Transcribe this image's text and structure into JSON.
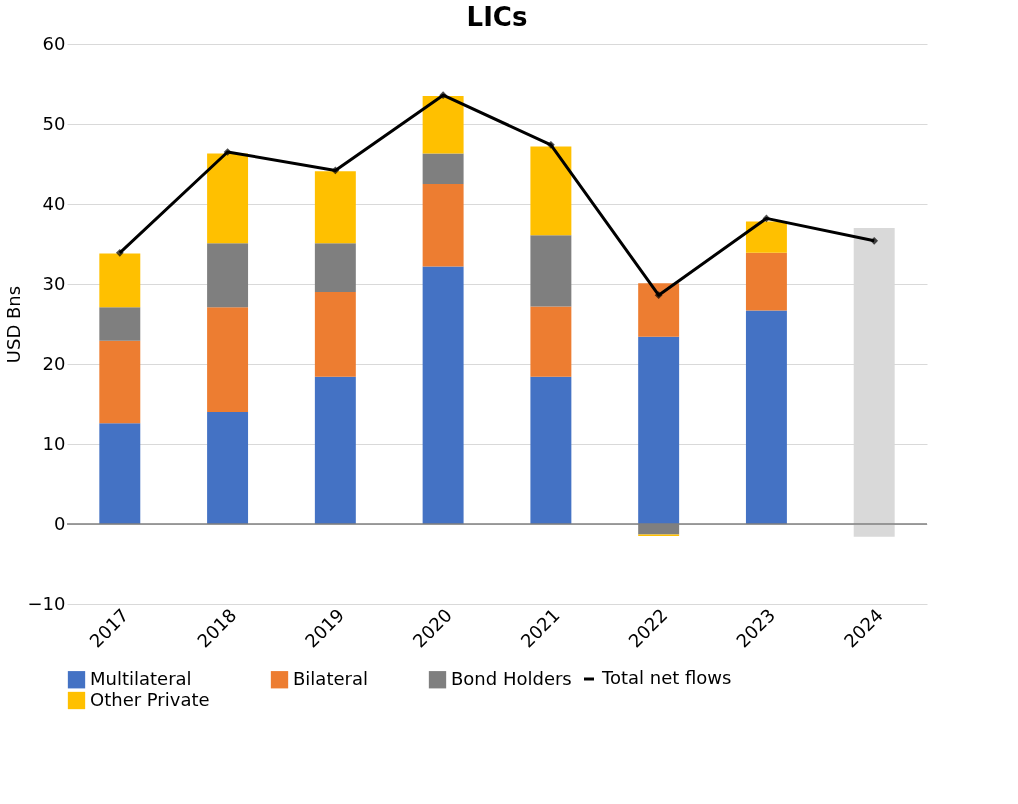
{
  "chart_data": {
    "type": "bar",
    "title": "LICs",
    "ylabel": "USD Bns",
    "stacked": true,
    "categories": [
      "2017",
      "2018",
      "2019",
      "2020",
      "2021",
      "2022",
      "2023",
      "2024"
    ],
    "series": [
      {
        "name": "Multilateral",
        "color": "#4472c4",
        "values": [
          12.6,
          14.0,
          18.4,
          32.2,
          18.4,
          23.4,
          26.7,
          null
        ]
      },
      {
        "name": "Bilateral",
        "color": "#ed7d31",
        "values": [
          10.3,
          13.1,
          10.6,
          10.3,
          8.8,
          6.7,
          7.2,
          null
        ]
      },
      {
        "name": "Bond Holders",
        "color": "#7f7f7f",
        "values": [
          4.2,
          8.0,
          6.1,
          3.8,
          8.9,
          -1.3,
          0,
          null
        ]
      },
      {
        "name": "Other Private",
        "color": "#ffc000",
        "values": [
          6.7,
          11.2,
          9.0,
          7.2,
          11.1,
          -0.2,
          3.9,
          null
        ]
      },
      {
        "color": "#d9d9d9",
        "values": [
          null,
          null,
          null,
          null,
          null,
          null,
          null,
          37.0
        ]
      },
      {
        "color": "#d9d9d9",
        "values": [
          null,
          null,
          null,
          null,
          null,
          null,
          null,
          -1.6
        ]
      },
      {
        "name": "Total net flows",
        "type": "line",
        "color": "#000000",
        "marker": "diamond",
        "values": [
          33.9,
          46.5,
          44.2,
          53.6,
          47.4,
          28.6,
          38.2,
          35.4
        ]
      }
    ],
    "ylim": [
      -10,
      60
    ],
    "yticks": [
      -10,
      0,
      10,
      20,
      30,
      40,
      50,
      60
    ],
    "grid": "y",
    "legend": "bottom"
  }
}
